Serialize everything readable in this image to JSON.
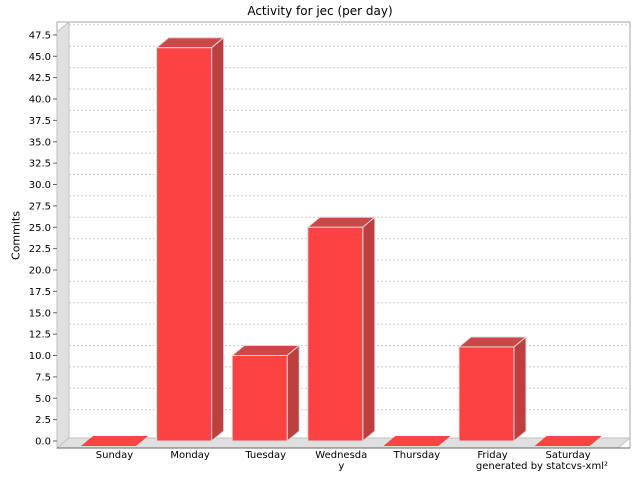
{
  "title": "Activity for jec (per day)",
  "footer": "generated by statcvs-xml²",
  "chart_data": {
    "type": "bar",
    "style": "3d-bar",
    "title": "Activity for jec (per day)",
    "xlabel": "",
    "ylabel": "Commits",
    "categories": [
      "Sunday",
      "Monday",
      "Tuesday",
      "Wednesday",
      "Thursday",
      "Friday",
      "Saturday"
    ],
    "values": [
      0,
      46,
      10,
      25,
      0,
      11,
      0
    ],
    "ylim": [
      0,
      47.5
    ],
    "ytick_step": 2.5,
    "yticks": [
      0.0,
      2.5,
      5.0,
      7.5,
      10.0,
      12.5,
      15.0,
      17.5,
      20.0,
      22.5,
      25.0,
      27.5,
      30.0,
      32.5,
      35.0,
      37.5,
      40.0,
      42.5,
      45.0,
      47.5
    ],
    "grid": true,
    "legend": false,
    "colors": {
      "bar_front": "#fb4343",
      "bar_side": "#bd3f3f",
      "bar_top": "#cc4848",
      "bar_outline": "#d9d9d9",
      "wall": "#e0e0e0",
      "wall_edge": "#c2c2c2",
      "plot_border": "#a6a6a6",
      "gridline": "#cccccc",
      "axis_line": "#666666",
      "text": "#000000",
      "background": "#ffffff"
    }
  }
}
